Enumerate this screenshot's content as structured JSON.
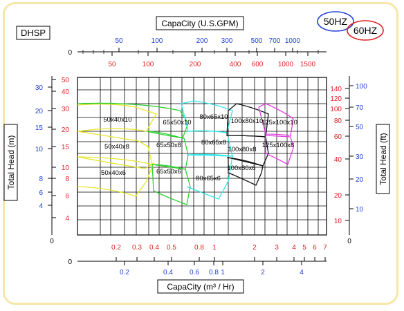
{
  "chart_data": {
    "type": "line",
    "model_label": "DHSP",
    "legend": [
      "50HZ",
      "60HZ"
    ],
    "top_axis": {
      "title": "CapaCity (U.S.GPM)",
      "origin": "0",
      "hz50_ticks": [
        "50",
        "100",
        "200",
        "300",
        "500",
        "700",
        "1000"
      ],
      "hz60_ticks": [
        "50",
        "100",
        "200",
        "400",
        "600",
        "1000",
        "1500"
      ]
    },
    "bottom_axis": {
      "title": "CapaCity (m³ / Hr)",
      "origin": "0",
      "hz60_ticks": [
        "0.2",
        "0.3",
        "0.4",
        "0.5",
        "0.8",
        "1",
        "2",
        "3",
        "4",
        "5",
        "6",
        "7"
      ],
      "hz50_ticks": [
        "0.2",
        "0.4",
        "0.6",
        "0.8",
        "1",
        "2",
        "4"
      ]
    },
    "left_axis": {
      "title": "Total Head (m)",
      "origin": "0",
      "hz50_ticks": [
        "30",
        "20",
        "15",
        "10",
        "8",
        "6",
        "4"
      ],
      "hz60_ticks": [
        "50",
        "40",
        "30",
        "20",
        "15",
        "10",
        "8",
        "6",
        "4"
      ]
    },
    "right_axis": {
      "title": "Total Head (ft)",
      "origin": "0",
      "hz60_ticks": [
        "140",
        "120",
        "100",
        "80",
        "60",
        "40",
        "20",
        "10"
      ],
      "hz50_ticks": [
        "100",
        "70",
        "50",
        "30",
        "20",
        "10"
      ]
    },
    "zones": [
      {
        "label": "50x40x10",
        "color": "#e6e62a"
      },
      {
        "label": "50x40x8",
        "color": "#e6e62a"
      },
      {
        "label": "50x40x6",
        "color": "#e6e62a"
      },
      {
        "label": "65x50x10",
        "color": "#2ed02e"
      },
      {
        "label": "65x50x8",
        "color": "#2ed02e"
      },
      {
        "label": "65x50x6",
        "color": "#2ed02e"
      },
      {
        "label": "80x65x10",
        "color": "#2ee6e6"
      },
      {
        "label": "80x65x8",
        "color": "#2ee6e6"
      },
      {
        "label": "80x65x6",
        "color": "#2ee6e6"
      },
      {
        "label": "100x80x10",
        "color": "#111111"
      },
      {
        "label": "100x80x8",
        "color": "#111111"
      },
      {
        "label": "100x80x6",
        "color": "#111111"
      },
      {
        "label": "125x100x10",
        "color": "#e040e0"
      },
      {
        "label": "125x100x8",
        "color": "#e040e0"
      }
    ],
    "colors": {
      "hz50": "#1f3fd6",
      "hz60": "#e02020",
      "grid": "#000000"
    }
  }
}
